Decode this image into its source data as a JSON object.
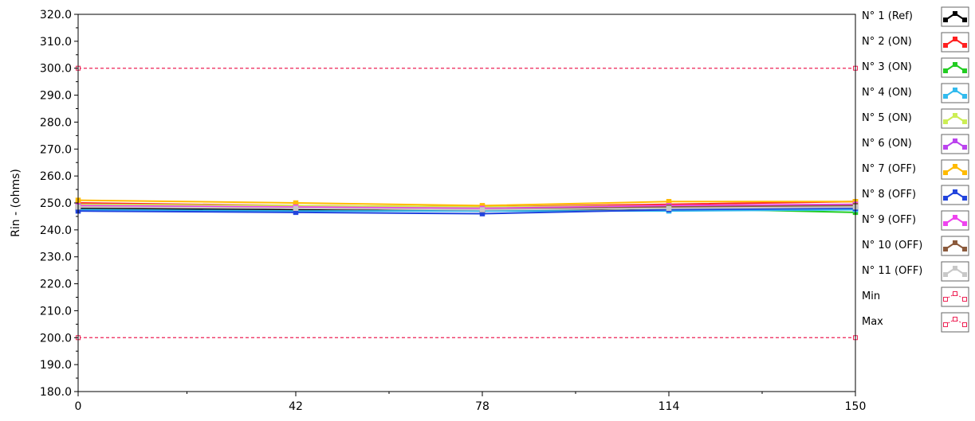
{
  "chart_data": {
    "type": "line",
    "title": "",
    "xlabel": "",
    "ylabel": "Rin - (ohms)",
    "xlim": [
      0,
      150
    ],
    "ylim": [
      180,
      320
    ],
    "x_ticks": [
      0,
      42,
      78,
      114,
      150
    ],
    "y_ticks": [
      180,
      190,
      200,
      210,
      220,
      230,
      240,
      250,
      260,
      270,
      280,
      290,
      300,
      310,
      320
    ],
    "y_tick_labels": [
      "180.0",
      "190.0",
      "200.0",
      "210.0",
      "220.0",
      "230.0",
      "240.0",
      "250.0",
      "260.0",
      "270.0",
      "280.0",
      "290.0",
      "300.0",
      "310.0",
      "320.0"
    ],
    "x_tick_labels": [
      "0",
      "42",
      "78",
      "114",
      "150"
    ],
    "grid": false,
    "legend_position": "right",
    "series": [
      {
        "name": "N° 1 (Ref)",
        "color": "#000000",
        "x": [
          0,
          42,
          78,
          114,
          150
        ],
        "values": [
          248.0,
          247.5,
          247.0,
          248.0,
          248.0
        ]
      },
      {
        "name": "N° 2 (ON)",
        "color": "#ff2020",
        "x": [
          0,
          42,
          78,
          114,
          150
        ],
        "values": [
          250.0,
          249.0,
          248.5,
          249.5,
          250.5
        ]
      },
      {
        "name": "N° 3 (ON)",
        "color": "#22cc22",
        "x": [
          0,
          42,
          78,
          114,
          150
        ],
        "values": [
          249.0,
          248.0,
          247.5,
          248.0,
          246.5
        ]
      },
      {
        "name": "N° 4 (ON)",
        "color": "#33bbee",
        "x": [
          0,
          42,
          78,
          114,
          150
        ],
        "values": [
          247.5,
          247.0,
          247.0,
          247.0,
          247.5
        ]
      },
      {
        "name": "N° 5 (ON)",
        "color": "#ccee55",
        "x": [
          0,
          42,
          78,
          114,
          150
        ],
        "values": [
          249.5,
          249.0,
          248.5,
          249.0,
          249.5
        ]
      },
      {
        "name": "N° 6 (ON)",
        "color": "#bb44ee",
        "x": [
          0,
          42,
          78,
          114,
          150
        ],
        "values": [
          249.0,
          248.0,
          247.5,
          248.5,
          249.0
        ]
      },
      {
        "name": "N° 7 (OFF)",
        "color": "#ffbb00",
        "x": [
          0,
          42,
          78,
          114,
          150
        ],
        "values": [
          251.0,
          250.0,
          249.0,
          250.5,
          250.5
        ]
      },
      {
        "name": "N° 8 (OFF)",
        "color": "#2244dd",
        "x": [
          0,
          42,
          78,
          114,
          150
        ],
        "values": [
          247.0,
          246.5,
          246.0,
          247.5,
          248.0
        ]
      },
      {
        "name": "N° 9 (OFF)",
        "color": "#ee44ee",
        "x": [
          0,
          42,
          78,
          114,
          150
        ],
        "values": [
          249.0,
          248.5,
          248.0,
          249.0,
          249.5
        ]
      },
      {
        "name": "N° 10 (OFF)",
        "color": "#8b5a3c",
        "x": [
          0,
          42,
          78,
          114,
          150
        ],
        "values": [
          248.5,
          248.0,
          247.5,
          248.5,
          249.0
        ]
      },
      {
        "name": "N° 11 (OFF)",
        "color": "#c8c8c8",
        "x": [
          0,
          42,
          78,
          114,
          150
        ],
        "values": [
          248.5,
          248.0,
          247.5,
          248.0,
          248.5
        ]
      },
      {
        "name": "Min",
        "color": "#ee2255",
        "dashed": true,
        "x": [
          0,
          150
        ],
        "values": [
          200,
          200
        ]
      },
      {
        "name": "Max",
        "color": "#ee2255",
        "dashed": true,
        "x": [
          0,
          150
        ],
        "values": [
          300,
          300
        ]
      }
    ]
  }
}
